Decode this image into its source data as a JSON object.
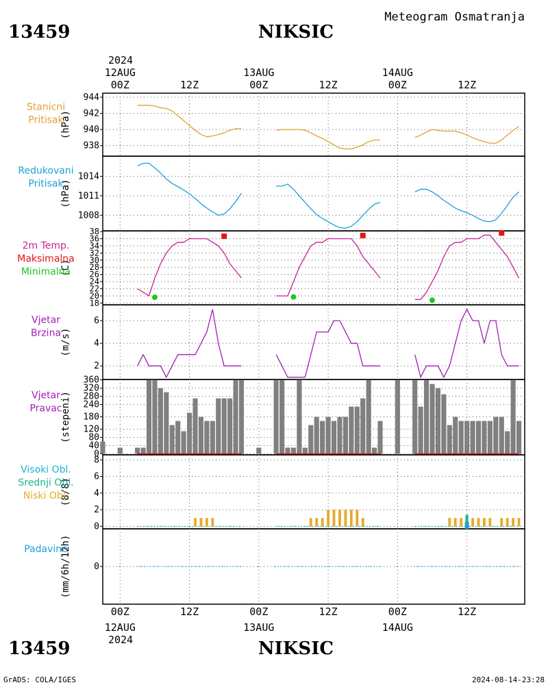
{
  "header": {
    "station_id": "13459",
    "station_name": "NIKSIC",
    "product": "Meteogram Osmatranja",
    "year": "2024"
  },
  "footer": {
    "station_id": "13459",
    "station_name": "NIKSIC",
    "year": "2024",
    "credit": "GrADS: COLA/IGES",
    "timestamp": "2024-08-14-23:28"
  },
  "time_axis": {
    "tick_labels": [
      "00Z",
      "12Z",
      "00Z",
      "12Z",
      "00Z",
      "12Z"
    ],
    "tick_hours": [
      0,
      12,
      24,
      36,
      48,
      60
    ],
    "date_labels": [
      "12AUG",
      "13AUG",
      "14AUG"
    ],
    "date_hours": [
      0,
      24,
      48
    ],
    "range_hours": [
      -3,
      70
    ]
  },
  "colors": {
    "pressure_station": "#e0a030",
    "pressure_reduced": "#1aa0d8",
    "temperature": "#c81e96",
    "temp_max": "#e61414",
    "temp_min": "#1ec81e",
    "wind": "#a01eb4",
    "direction_bar": "#808080",
    "direction_base": "#e61414",
    "cloud_high": "#1ab4d2",
    "cloud_mid": "#1eb48c",
    "cloud_low": "#e6aa28",
    "precip": "#1aa0d8"
  },
  "chart_data": [
    {
      "type": "line",
      "panel": "station_pressure",
      "labels": [
        "Stanicni",
        "Pritisak"
      ],
      "ylabel": "(hPa)",
      "ylim": [
        936.7,
        944.5
      ],
      "yticks": [
        938,
        940,
        942,
        944
      ],
      "grid": true,
      "series": [
        {
          "segments": [
            {
              "x": [
                3,
                4,
                5,
                6,
                7,
                8,
                9,
                10,
                11,
                12,
                13,
                14,
                15,
                16,
                17,
                18,
                19,
                20,
                21
              ],
              "y": [
                943.0,
                943.0,
                943.0,
                942.9,
                942.7,
                942.6,
                942.3,
                941.7,
                941.1,
                940.5,
                939.9,
                939.4,
                939.1,
                939.2,
                939.4,
                939.6,
                939.9,
                940.1,
                940.1
              ]
            },
            {
              "x": [
                27,
                28,
                29,
                30,
                31,
                32,
                33,
                34,
                35,
                36,
                37,
                38,
                39,
                40,
                41,
                42,
                43,
                44,
                45
              ],
              "y": [
                939.9,
                940.0,
                940.0,
                940.0,
                940.0,
                939.9,
                939.6,
                939.2,
                938.9,
                938.5,
                938.1,
                937.7,
                937.6,
                937.6,
                937.8,
                938.1,
                938.5,
                938.7,
                938.7
              ]
            },
            {
              "x": [
                51,
                52,
                53,
                54,
                55,
                56,
                57,
                58,
                59,
                60,
                61,
                62,
                63,
                64,
                65,
                66,
                67,
                68,
                69
              ],
              "y": [
                939.0,
                939.3,
                939.7,
                940.0,
                939.9,
                939.8,
                939.8,
                939.8,
                939.6,
                939.3,
                939.0,
                938.7,
                938.5,
                938.3,
                938.3,
                938.7,
                939.3,
                939.9,
                940.4
              ]
            }
          ]
        }
      ]
    },
    {
      "type": "line",
      "panel": "reduced_pressure",
      "labels": [
        "Redukovani",
        "Pritisak"
      ],
      "ylabel": "(hPa)",
      "ylim": [
        1005.6,
        1017.1
      ],
      "yticks": [
        1008,
        1011,
        1014
      ],
      "grid": true,
      "series": [
        {
          "segments": [
            {
              "x": [
                3,
                4,
                5,
                6,
                7,
                8,
                9,
                10,
                11,
                12,
                13,
                14,
                15,
                16,
                17,
                18,
                19,
                20,
                21
              ],
              "y": [
                1015.6,
                1016.0,
                1016.0,
                1015.3,
                1014.5,
                1013.6,
                1012.9,
                1012.4,
                1011.9,
                1011.3,
                1010.6,
                1009.8,
                1009.1,
                1008.5,
                1008.0,
                1008.2,
                1009.0,
                1010.1,
                1011.4
              ]
            },
            {
              "x": [
                27,
                28,
                29,
                30,
                31,
                32,
                33,
                34,
                35,
                36,
                37,
                38,
                39,
                40,
                41,
                42,
                43,
                44,
                45
              ],
              "y": [
                1012.5,
                1012.5,
                1012.8,
                1012.0,
                1011.0,
                1010.0,
                1009.0,
                1008.1,
                1007.5,
                1007.0,
                1006.5,
                1006.1,
                1006.0,
                1006.3,
                1007.0,
                1008.0,
                1008.9,
                1009.7,
                1010.0
              ]
            },
            {
              "x": [
                51,
                52,
                53,
                54,
                55,
                56,
                57,
                58,
                59,
                60,
                61,
                62,
                63,
                64,
                65,
                66,
                67,
                68,
                69
              ],
              "y": [
                1011.6,
                1012.0,
                1012.0,
                1011.6,
                1011.0,
                1010.3,
                1009.7,
                1009.1,
                1008.7,
                1008.4,
                1008.0,
                1007.5,
                1007.1,
                1007.0,
                1007.3,
                1008.3,
                1009.5,
                1010.8,
                1011.6
              ]
            }
          ]
        }
      ]
    },
    {
      "type": "line",
      "panel": "temperature",
      "labels": [
        "2m Temp.",
        "Maksimalna",
        "Minimalna"
      ],
      "ylabel": "(C)",
      "ylim": [
        17.5,
        38.2
      ],
      "yticks": [
        18,
        20,
        22,
        24,
        26,
        28,
        30,
        32,
        34,
        36,
        38
      ],
      "grid": true,
      "series": [
        {
          "segments": [
            {
              "x": [
                3,
                4,
                5,
                6,
                7,
                8,
                9,
                10,
                11,
                12,
                13,
                14,
                15,
                16,
                17,
                18,
                19,
                20,
                21
              ],
              "y": [
                22,
                21,
                20,
                25,
                29,
                32,
                34,
                35,
                35,
                36,
                36,
                36,
                36,
                35,
                34,
                32,
                29,
                27,
                25
              ]
            },
            {
              "x": [
                27,
                28,
                29,
                30,
                31,
                32,
                33,
                34,
                35,
                36,
                37,
                38,
                39,
                40,
                41,
                42,
                43,
                44,
                45
              ],
              "y": [
                20,
                20,
                20,
                24,
                28,
                31,
                34,
                35,
                35,
                36,
                36,
                36,
                36,
                36,
                34,
                31,
                29,
                27,
                25
              ]
            },
            {
              "x": [
                51,
                52,
                53,
                54,
                55,
                56,
                57,
                58,
                59,
                60,
                61,
                62,
                63,
                64,
                65,
                66,
                67,
                68,
                69
              ],
              "y": [
                19,
                19,
                21,
                24,
                27,
                31,
                34,
                35,
                35,
                36,
                36,
                36,
                37,
                37,
                35,
                33,
                31,
                28,
                25
              ]
            }
          ]
        }
      ],
      "max_points": {
        "x": [
          18,
          42,
          66
        ],
        "y": [
          36.7,
          36.9,
          37.6
        ]
      },
      "min_points": {
        "x": [
          6,
          30,
          54
        ],
        "y": [
          19.6,
          19.7,
          18.8
        ]
      }
    },
    {
      "type": "line",
      "panel": "wind_speed",
      "labels": [
        "Vjetar",
        "Brzina"
      ],
      "ylabel": "(m/s)",
      "ylim": [
        0.8,
        7.4
      ],
      "yticks": [
        2,
        4,
        6
      ],
      "grid": true,
      "series": [
        {
          "segments": [
            {
              "x": [
                3,
                4,
                5,
                6,
                7,
                8,
                9,
                10,
                11,
                12,
                13,
                14,
                15,
                16,
                17,
                18,
                19,
                20,
                21
              ],
              "y": [
                2,
                3,
                2,
                2,
                2,
                1,
                2,
                3,
                3,
                3,
                3,
                4,
                5,
                7,
                4,
                2,
                2,
                2,
                2
              ]
            },
            {
              "x": [
                27,
                28,
                29,
                30,
                31,
                32,
                33,
                34,
                35,
                36,
                37,
                38,
                39,
                40,
                41,
                42,
                43,
                44,
                45
              ],
              "y": [
                3,
                2,
                1,
                1,
                1,
                1,
                3,
                5,
                5,
                5,
                6,
                6,
                5,
                4,
                4,
                2,
                2,
                2,
                2
              ]
            },
            {
              "x": [
                51,
                52,
                53,
                54,
                55,
                56,
                57,
                58,
                59,
                60,
                61,
                62,
                63,
                64,
                65,
                66,
                67,
                68,
                69
              ],
              "y": [
                3,
                1,
                2,
                2,
                2,
                1,
                2,
                4,
                6,
                7,
                6,
                6,
                4,
                6,
                6,
                3,
                2,
                2,
                2
              ]
            }
          ]
        }
      ]
    },
    {
      "type": "bar",
      "panel": "wind_direction",
      "labels": [
        "Vjetar",
        "Pravac"
      ],
      "ylabel": "(stepeni)",
      "ylim": [
        -5,
        362
      ],
      "yticks": [
        0,
        40,
        80,
        120,
        180,
        240,
        280,
        320,
        360
      ],
      "grid": true,
      "x": [
        -3,
        0,
        3,
        4,
        5,
        6,
        7,
        8,
        9,
        10,
        11,
        12,
        13,
        14,
        15,
        16,
        17,
        18,
        19,
        20,
        21,
        24,
        27,
        28,
        29,
        30,
        31,
        32,
        33,
        34,
        35,
        36,
        37,
        38,
        39,
        40,
        41,
        42,
        43,
        44,
        45,
        48,
        51,
        52,
        53,
        54,
        55,
        56,
        57,
        58,
        59,
        60,
        61,
        62,
        63,
        64,
        65,
        66,
        67,
        68,
        69
      ],
      "values": [
        60,
        30,
        30,
        30,
        360,
        360,
        320,
        300,
        140,
        160,
        110,
        200,
        270,
        180,
        160,
        160,
        270,
        270,
        270,
        360,
        360,
        30,
        360,
        360,
        30,
        30,
        360,
        30,
        140,
        180,
        160,
        180,
        160,
        180,
        180,
        230,
        230,
        270,
        360,
        30,
        160,
        360,
        360,
        230,
        360,
        340,
        320,
        290,
        140,
        180,
        160,
        160,
        160,
        160,
        160,
        160,
        180,
        180,
        110,
        360,
        160
      ]
    },
    {
      "type": "bar",
      "panel": "cloud_cover",
      "labels": [
        "Visoki Obl.",
        "Srednji Obl.",
        "Niski Obl."
      ],
      "ylabel": "(8/8)",
      "ylim": [
        -0.3,
        8.6
      ],
      "yticks": [
        0,
        2,
        4,
        6,
        8
      ],
      "grid": true,
      "series": [
        {
          "name": "Visoki Obl.",
          "x": [],
          "values": []
        },
        {
          "name": "Srednji Obl.",
          "x": [],
          "values": []
        },
        {
          "name": "Niski Obl.",
          "x": [
            13,
            14,
            15,
            16,
            33,
            34,
            35,
            36,
            37,
            38,
            39,
            40,
            41,
            42,
            57,
            58,
            59,
            60,
            61,
            62,
            63,
            64,
            66,
            67,
            68,
            69
          ],
          "values": [
            1,
            1,
            1,
            1,
            1,
            1,
            1,
            2,
            2,
            2,
            2,
            2,
            2,
            1,
            1,
            1,
            1,
            1,
            1,
            1,
            1,
            1,
            1,
            1,
            1,
            1
          ]
        }
      ]
    },
    {
      "type": "bar",
      "panel": "precipitation",
      "labels": [
        "Padavine"
      ],
      "ylabel": "(mm/6h/12h)",
      "ylim": [
        -1,
        1
      ],
      "yticks": [
        0
      ],
      "grid": true,
      "x": [
        60
      ],
      "values": [
        0.1
      ]
    }
  ]
}
